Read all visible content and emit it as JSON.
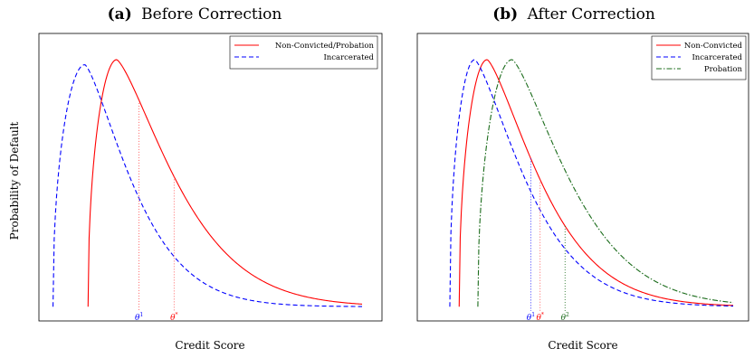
{
  "figure": {
    "ylabel": "Probability of Default"
  },
  "chart_data": [
    {
      "type": "line",
      "panel_tag": "(a)",
      "title": "Before Correction",
      "xlabel": "Credit Score",
      "ylabel": "Probability of Default",
      "grid": false,
      "legend_position": "top-right",
      "xlim": [
        0,
        1
      ],
      "ylim": [
        0,
        1
      ],
      "series": [
        {
          "name": "Non-Convicted/Probation",
          "color": "#ff0000",
          "style": "solid",
          "start": 0.14,
          "peak_x": 0.23,
          "peak_y": 1.0,
          "decay": 0.25
        },
        {
          "name": "Incarcerated",
          "color": "#0000ff",
          "style": "dashed",
          "start": 0.03,
          "peak_x": 0.13,
          "peak_y": 0.98,
          "decay": 0.2
        }
      ],
      "thresholds": [
        {
          "label": "θ",
          "sup": "1",
          "x": 0.3,
          "color": "#0000ff",
          "line_color": "#ff4040"
        },
        {
          "label": "θ",
          "sup": "*",
          "x": 0.41,
          "color": "#ff0000",
          "line_color": "#ff4040"
        }
      ]
    },
    {
      "type": "line",
      "panel_tag": "(b)",
      "title": "After Correction",
      "xlabel": "Credit Score",
      "ylabel": "",
      "grid": false,
      "legend_position": "top-right",
      "xlim": [
        0,
        1
      ],
      "ylim": [
        0,
        1
      ],
      "series": [
        {
          "name": "Non-Convicted",
          "color": "#ff0000",
          "style": "solid",
          "start": 0.12,
          "peak_x": 0.21,
          "peak_y": 1.0,
          "decay": 0.23
        },
        {
          "name": "Incarcerated",
          "color": "#0000ff",
          "style": "dashed",
          "start": 0.09,
          "peak_x": 0.17,
          "peak_y": 1.0,
          "decay": 0.22
        },
        {
          "name": "Probation",
          "color": "#1a6b1a",
          "style": "dashdot",
          "start": 0.18,
          "peak_x": 0.29,
          "peak_y": 1.0,
          "decay": 0.25
        }
      ],
      "thresholds": [
        {
          "label": "θ",
          "sup": "1",
          "x": 0.35,
          "color": "#0000ff",
          "line_color": "#0000ff"
        },
        {
          "label": "θ",
          "sup": "*",
          "x": 0.38,
          "color": "#ff0000",
          "line_color": "#ff4040"
        },
        {
          "label": "θ",
          "sup": "2",
          "x": 0.46,
          "color": "#1a6b1a",
          "line_color": "#1a6b1a"
        }
      ]
    }
  ]
}
